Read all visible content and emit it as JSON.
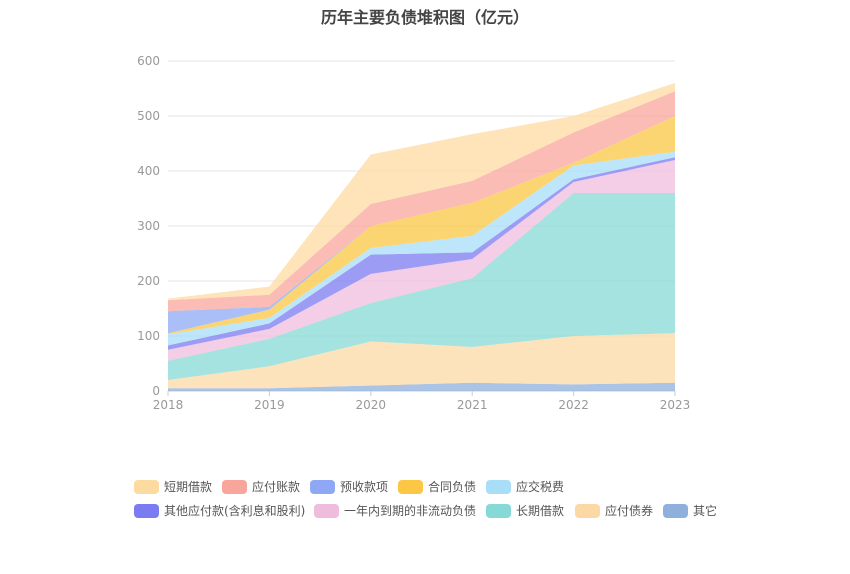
{
  "chart_data": {
    "type": "area",
    "stacked": true,
    "title": "历年主要负债堆积图（亿元）",
    "categories": [
      "2018",
      "2019",
      "2020",
      "2021",
      "2022",
      "2023"
    ],
    "ylim": [
      0,
      600
    ],
    "yticks": [
      0,
      100,
      200,
      300,
      400,
      500,
      600
    ],
    "grid": true,
    "legend_position": "bottom",
    "series": [
      {
        "name": "其它",
        "color": "#8fb0dd",
        "values": [
          5,
          5,
          10,
          15,
          12,
          15
        ]
      },
      {
        "name": "应付债券",
        "color": "#fcd9a4",
        "values": [
          15,
          40,
          80,
          65,
          88,
          90
        ]
      },
      {
        "name": "长期借款",
        "color": "#86d9d6",
        "values": [
          35,
          50,
          70,
          125,
          260,
          255
        ]
      },
      {
        "name": "一年内到期的非流动负债",
        "color": "#f0bcdd",
        "values": [
          20,
          18,
          53,
          35,
          20,
          60
        ]
      },
      {
        "name": "其他应付款(含利息和股利)",
        "color": "#7b7bf2",
        "values": [
          8,
          10,
          35,
          12,
          5,
          5
        ]
      },
      {
        "name": "应交税费",
        "color": "#a8def8",
        "values": [
          20,
          10,
          12,
          30,
          25,
          10
        ]
      },
      {
        "name": "合同负债",
        "color": "#fbc744",
        "values": [
          2,
          15,
          40,
          60,
          5,
          65
        ]
      },
      {
        "name": "预收款项",
        "color": "#8ea8f6",
        "values": [
          40,
          5,
          0,
          0,
          0,
          0
        ]
      },
      {
        "name": "应付账款",
        "color": "#f8a59c",
        "values": [
          20,
          22,
          40,
          40,
          55,
          45
        ]
      },
      {
        "name": "短期借款",
        "color": "#fddba0",
        "values": [
          3,
          15,
          90,
          85,
          30,
          15
        ]
      }
    ],
    "legend": [
      [
        "短期借款",
        "应付账款",
        "预收款项",
        "合同负债",
        "应交税费"
      ],
      [
        "其他应付款(含利息和股利)",
        "一年内到期的非流动负债",
        "长期借款",
        "应付债券",
        "其它"
      ]
    ]
  }
}
